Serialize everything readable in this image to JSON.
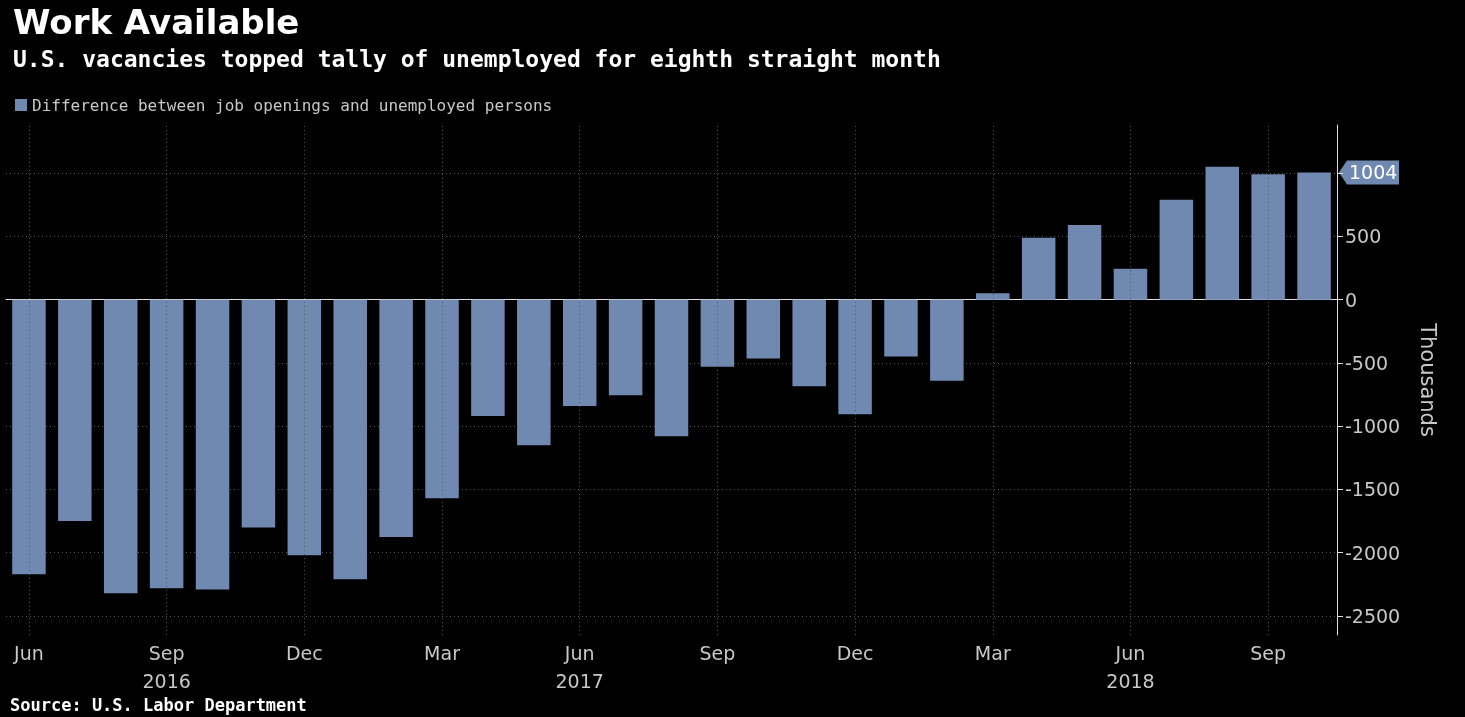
{
  "chart_data": {
    "type": "bar",
    "title": "Work Available",
    "subtitle": "U.S. vacancies topped tally of unemployed for eighth straight month",
    "categories": [
      "Jun",
      null,
      null,
      "Sep",
      null,
      null,
      "Dec",
      null,
      null,
      "Mar",
      null,
      null,
      "Jun",
      null,
      null,
      "Sep",
      null,
      null,
      "Dec",
      null,
      null,
      "Mar",
      null,
      null,
      "Jun",
      null,
      null,
      "Sep",
      null
    ],
    "series": [
      {
        "name": "Difference between job openings and unemployed persons",
        "color": "#7089b0",
        "values": [
          -2170,
          -1750,
          -2320,
          -2280,
          -2290,
          -1800,
          -2020,
          -2210,
          -1875,
          -1570,
          -920,
          -1150,
          -840,
          -755,
          -1080,
          -530,
          -465,
          -685,
          -905,
          -450,
          -640,
          50,
          490,
          590,
          245,
          790,
          1050,
          990,
          1004
        ]
      }
    ],
    "ylabel": "Thousands",
    "ylim": [
      -2650,
      1380
    ],
    "yticks": [
      -2500,
      -2000,
      -1500,
      -1000,
      -500,
      0,
      500,
      {
        "value": 1000,
        "label": null
      }
    ],
    "grid": true,
    "legend": "top left",
    "annotations": [
      "2016",
      "2017",
      "2018",
      "Source: U.S. Labor Department",
      "1004"
    ]
  }
}
